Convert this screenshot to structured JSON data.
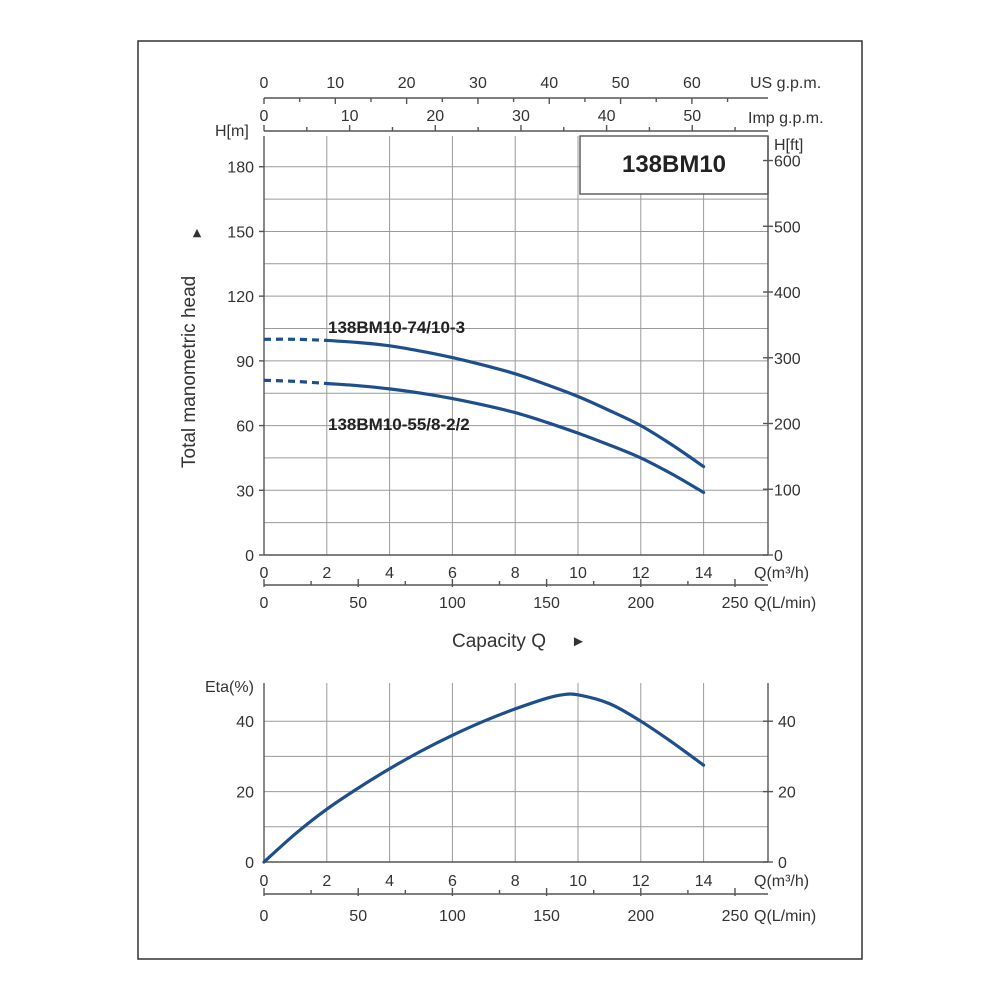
{
  "chart_data": [
    {
      "type": "line",
      "title": "138BM10",
      "xlabel": "Capacity Q",
      "ylabel": "Total manometric head",
      "x_unit": "Q(m³/h)",
      "x2_unit": "Q(L/min)",
      "x3_unit": "Imp g.p.m.",
      "x4_unit": "US g.p.m.",
      "y_unit": "H[m]",
      "y2_unit": "H[ft]",
      "xlim": [
        0,
        15.5
      ],
      "ylim": [
        0,
        190
      ],
      "grid": true,
      "x_ticks": [
        "0",
        "2",
        "4",
        "6",
        "8",
        "10",
        "12",
        "14"
      ],
      "x2_ticks": [
        "0",
        "50",
        "100",
        "150",
        "200",
        "250"
      ],
      "x3_ticks": [
        "0",
        "10",
        "20",
        "30",
        "40",
        "50"
      ],
      "x4_ticks": [
        "0",
        "10",
        "20",
        "30",
        "40",
        "50",
        "60"
      ],
      "y_ticks": [
        "0",
        "30",
        "60",
        "90",
        "120",
        "150",
        "180"
      ],
      "y2_ticks": [
        "0",
        "100",
        "200",
        "300",
        "400",
        "500",
        "600"
      ],
      "series": [
        {
          "name": "138BM10-74/10-3",
          "x": [
            0,
            1,
            2,
            3,
            4,
            5,
            6,
            7,
            8,
            9,
            10,
            11,
            12,
            13,
            14
          ],
          "values": [
            100,
            100,
            99.5,
            98.5,
            97,
            94.5,
            91.5,
            88,
            84,
            79,
            73.5,
            67,
            60,
            51,
            41
          ]
        },
        {
          "name": "138BM10-55/8-2/2",
          "x": [
            0,
            1,
            2,
            3,
            4,
            5,
            6,
            7,
            8,
            9,
            10,
            11,
            12,
            13,
            14
          ],
          "values": [
            81,
            80.5,
            79.5,
            78.5,
            77,
            75,
            72.5,
            69.5,
            66,
            61.5,
            56.5,
            51,
            45,
            37.5,
            29
          ]
        }
      ]
    },
    {
      "type": "line",
      "ylabel": "Eta(%)",
      "x_unit": "Q(m³/h)",
      "x2_unit": "Q(L/min)",
      "xlim": [
        0,
        15.5
      ],
      "ylim": [
        0,
        48
      ],
      "grid": true,
      "x_ticks": [
        "0",
        "2",
        "4",
        "6",
        "8",
        "10",
        "12",
        "14"
      ],
      "x2_ticks": [
        "0",
        "50",
        "100",
        "150",
        "200",
        "250"
      ],
      "y_ticks": [
        "0",
        "20",
        "40"
      ],
      "series": [
        {
          "x": [
            0,
            1,
            2,
            3,
            4,
            5,
            6,
            7,
            8,
            9,
            9.5,
            10,
            11,
            12,
            13,
            14
          ],
          "values": [
            0,
            8,
            15,
            21,
            26.5,
            31.5,
            36,
            40,
            43.5,
            46.5,
            47.5,
            47.5,
            45,
            40,
            34,
            27.5
          ]
        }
      ]
    }
  ],
  "arrows": {
    "up": "▲",
    "right": "►"
  },
  "colors": {
    "curve": "#1f4e8c",
    "grid": "#9a9a9a",
    "frame": "#555555"
  }
}
